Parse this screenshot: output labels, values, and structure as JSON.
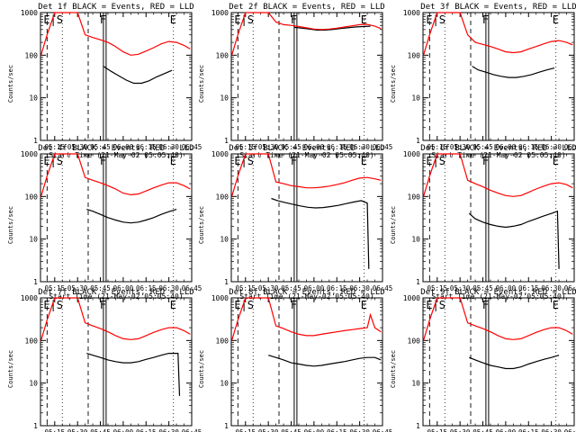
{
  "figure": {
    "x_axis_label": "Start Time (21-May-02 05:05:40)",
    "y_axis_label": "Counts/sec",
    "y_ticks": [
      {
        "value": 1,
        "label": "1"
      },
      {
        "value": 10,
        "label": "10"
      },
      {
        "value": 100,
        "label": "100"
      },
      {
        "value": 1000,
        "label": "1000"
      }
    ],
    "x_ticks": [
      "05:15",
      "05:30",
      "05:45",
      "06:00",
      "06:15",
      "06:30",
      "06:45"
    ],
    "colors": {
      "events": "#000000",
      "lld": "#ff0000",
      "background": "#ffffff",
      "axes": "#000000"
    }
  },
  "chart_data": [
    {
      "type": "line",
      "title": "Det 1f BLACK = Events, RED = LLD",
      "xlabel": "Start Time (21-May-02 05:05:40)",
      "ylabel": "Counts/sec",
      "xlim": [
        "05:05:40",
        "06:45"
      ],
      "ylim": [
        1,
        1000
      ],
      "y_scale": "log",
      "grid": false,
      "legend": "none",
      "markers": {
        "E": "06:33",
        "S": "05:10",
        "F": "05:47"
      },
      "series": [
        {
          "name": "Events",
          "color": "#000000",
          "x": [
            "05:47",
            "05:52",
            "05:57",
            "06:02",
            "06:07",
            "06:12",
            "06:17",
            "06:22",
            "06:27",
            "06:32"
          ],
          "values": [
            55,
            42,
            33,
            26,
            22,
            22,
            25,
            31,
            37,
            44
          ]
        },
        {
          "name": "LLD",
          "color": "#ff0000",
          "x": [
            "05:06",
            "05:10",
            "05:15",
            "05:25",
            "05:30",
            "05:35",
            "05:40",
            "05:45",
            "05:50",
            "05:55",
            "06:00",
            "06:05",
            "06:10",
            "06:15",
            "06:20",
            "06:25",
            "06:30",
            "06:35",
            "06:40",
            "06:44"
          ],
          "values": [
            100,
            300,
            1000,
            1000,
            1000,
            300,
            260,
            230,
            200,
            160,
            120,
            100,
            105,
            125,
            150,
            185,
            210,
            200,
            170,
            140
          ]
        }
      ]
    },
    {
      "type": "line",
      "title": "Det 2f BLACK = Events, RED = LLD",
      "xlabel": "Start Time (21-May-02 05:05:40)",
      "ylabel": "Counts/sec",
      "xlim": [
        "05:05:40",
        "06:45"
      ],
      "ylim": [
        1,
        1000
      ],
      "y_scale": "log",
      "grid": false,
      "legend": "none",
      "markers": {
        "E": "06:33",
        "S": "05:10",
        "F": "05:47"
      },
      "series": [
        {
          "name": "Events",
          "color": "#000000",
          "x": [
            "05:47",
            "05:52",
            "05:57",
            "06:02",
            "06:07",
            "06:12",
            "06:17",
            "06:22",
            "06:27",
            "06:32",
            "06:37"
          ],
          "values": [
            450,
            430,
            410,
            390,
            390,
            400,
            420,
            440,
            460,
            470,
            480
          ]
        },
        {
          "name": "LLD",
          "color": "#ff0000",
          "x": [
            "05:06",
            "05:10",
            "05:15",
            "05:25",
            "05:30",
            "05:35",
            "05:40",
            "05:45",
            "05:50",
            "05:55",
            "06:00",
            "06:05",
            "06:10",
            "06:15",
            "06:20",
            "06:25",
            "06:30",
            "06:35",
            "06:40",
            "06:44"
          ],
          "values": [
            100,
            300,
            1000,
            1000,
            1000,
            600,
            520,
            500,
            470,
            440,
            410,
            400,
            410,
            430,
            460,
            490,
            520,
            530,
            480,
            420
          ]
        }
      ]
    },
    {
      "type": "line",
      "title": "Det 3f BLACK = Events, RED = LLD",
      "xlabel": "Start Time (21-May-02 05:05:40)",
      "ylabel": "Counts/sec",
      "xlim": [
        "05:05:40",
        "06:45"
      ],
      "ylim": [
        1,
        1000
      ],
      "y_scale": "log",
      "grid": false,
      "legend": "none",
      "markers": {
        "E": "06:33",
        "S": "05:10",
        "F": "05:47"
      },
      "series": [
        {
          "name": "Events",
          "color": "#000000",
          "x": [
            "05:38",
            "05:42",
            "05:47",
            "05:52",
            "05:57",
            "06:02",
            "06:07",
            "06:12",
            "06:17",
            "06:22",
            "06:27",
            "06:32"
          ],
          "values": [
            55,
            45,
            40,
            35,
            32,
            30,
            30,
            32,
            35,
            40,
            45,
            50
          ]
        },
        {
          "name": "LLD",
          "color": "#ff0000",
          "x": [
            "05:06",
            "05:10",
            "05:15",
            "05:25",
            "05:30",
            "05:35",
            "05:40",
            "05:45",
            "05:50",
            "05:55",
            "06:00",
            "06:05",
            "06:10",
            "06:15",
            "06:20",
            "06:25",
            "06:30",
            "06:35",
            "06:40",
            "06:44"
          ],
          "values": [
            100,
            300,
            1000,
            1000,
            1000,
            300,
            200,
            180,
            160,
            140,
            120,
            115,
            120,
            140,
            160,
            185,
            210,
            220,
            200,
            175
          ]
        }
      ]
    },
    {
      "type": "line",
      "title": "Det 4f BLACK = Events, RED = LLD",
      "xlabel": "Start Time (21-May-02 05:05:40)",
      "ylabel": "Counts/sec",
      "xlim": [
        "05:05:40",
        "06:45"
      ],
      "ylim": [
        1,
        1000
      ],
      "y_scale": "log",
      "grid": false,
      "legend": "none",
      "markers": {
        "E": "06:33",
        "S": "05:10",
        "F": "05:47"
      },
      "series": [
        {
          "name": "Events",
          "color": "#000000",
          "x": [
            "05:36",
            "05:40",
            "05:45",
            "05:50",
            "05:55",
            "06:00",
            "06:05",
            "06:10",
            "06:15",
            "06:20",
            "06:25",
            "06:30",
            "06:35"
          ],
          "values": [
            50,
            45,
            38,
            32,
            28,
            25,
            24,
            25,
            28,
            32,
            38,
            44,
            50
          ]
        },
        {
          "name": "LLD",
          "color": "#ff0000",
          "x": [
            "05:06",
            "05:10",
            "05:15",
            "05:25",
            "05:30",
            "05:35",
            "05:40",
            "05:45",
            "05:50",
            "05:55",
            "06:00",
            "06:05",
            "06:10",
            "06:15",
            "06:20",
            "06:25",
            "06:30",
            "06:35",
            "06:40",
            "06:44"
          ],
          "values": [
            100,
            300,
            1000,
            1000,
            1000,
            280,
            240,
            210,
            180,
            150,
            120,
            110,
            115,
            135,
            160,
            185,
            210,
            210,
            180,
            150
          ]
        }
      ]
    },
    {
      "type": "line",
      "title": "Det 5f BLACK = Events, RED = LLD",
      "xlabel": "Start Time (21-May-02 05:05:40)",
      "ylabel": "Counts/sec",
      "xlim": [
        "05:05:40",
        "06:45"
      ],
      "ylim": [
        1,
        1000
      ],
      "y_scale": "log",
      "grid": false,
      "legend": "none",
      "markers": {
        "E": "06:33",
        "S": "05:10",
        "F": "05:47"
      },
      "series": [
        {
          "name": "Events",
          "color": "#000000",
          "x": [
            "05:32",
            "05:36",
            "05:41",
            "05:46",
            "05:51",
            "05:56",
            "06:01",
            "06:06",
            "06:11",
            "06:16",
            "06:21",
            "06:26",
            "06:31",
            "06:35",
            "06:36"
          ],
          "values": [
            90,
            80,
            72,
            66,
            60,
            56,
            54,
            55,
            58,
            62,
            68,
            74,
            80,
            70,
            2
          ]
        },
        {
          "name": "LLD",
          "color": "#ff0000",
          "x": [
            "05:06",
            "05:10",
            "05:15",
            "05:25",
            "05:30",
            "05:35",
            "05:40",
            "05:45",
            "05:50",
            "05:55",
            "06:00",
            "06:05",
            "06:10",
            "06:15",
            "06:20",
            "06:25",
            "06:30",
            "06:35",
            "06:40",
            "06:44"
          ],
          "values": [
            100,
            300,
            1000,
            1000,
            1000,
            220,
            200,
            180,
            170,
            160,
            160,
            165,
            175,
            190,
            210,
            240,
            270,
            280,
            260,
            240
          ]
        }
      ]
    },
    {
      "type": "line",
      "title": "Det 6f BLACK = Events, RED = LLD",
      "xlabel": "Start Time (21-May-02 05:05:40)",
      "ylabel": "Counts/sec",
      "xlim": [
        "05:05:40",
        "06:45"
      ],
      "ylim": [
        1,
        1000
      ],
      "y_scale": "log",
      "grid": false,
      "legend": "none",
      "markers": {
        "E": "06:33",
        "S": "05:10",
        "F": "05:47"
      },
      "series": [
        {
          "name": "Events",
          "color": "#000000",
          "x": [
            "05:36",
            "05:40",
            "05:45",
            "05:50",
            "05:55",
            "06:00",
            "06:05",
            "06:10",
            "06:15",
            "06:20",
            "06:25",
            "06:30",
            "06:34",
            "06:35"
          ],
          "values": [
            40,
            30,
            25,
            22,
            20,
            19,
            20,
            22,
            26,
            30,
            35,
            40,
            45,
            2
          ]
        },
        {
          "name": "LLD",
          "color": "#ff0000",
          "x": [
            "05:06",
            "05:10",
            "05:15",
            "05:25",
            "05:30",
            "05:35",
            "05:40",
            "05:45",
            "05:50",
            "05:55",
            "06:00",
            "06:05",
            "06:10",
            "06:15",
            "06:20",
            "06:25",
            "06:30",
            "06:35",
            "06:40",
            "06:44"
          ],
          "values": [
            100,
            300,
            1000,
            1000,
            1000,
            240,
            200,
            170,
            140,
            120,
            105,
            100,
            105,
            125,
            150,
            175,
            200,
            210,
            190,
            160
          ]
        }
      ]
    },
    {
      "type": "line",
      "title": "Det 7f BLACK = Events, RED = LLD",
      "xlabel": "Start Time (21-May-02 05:05:40)",
      "ylabel": "Counts/sec",
      "xlim": [
        "05:05:40",
        "06:45"
      ],
      "ylim": [
        1,
        1000
      ],
      "y_scale": "log",
      "grid": false,
      "legend": "none",
      "markers": {
        "E": "06:33",
        "S": "05:10",
        "F": "05:47"
      },
      "series": [
        {
          "name": "Events",
          "color": "#000000",
          "x": [
            "05:36",
            "05:40",
            "05:45",
            "05:50",
            "05:55",
            "06:00",
            "06:05",
            "06:10",
            "06:15",
            "06:20",
            "06:25",
            "06:30",
            "06:36",
            "06:37"
          ],
          "values": [
            50,
            45,
            40,
            35,
            32,
            30,
            30,
            32,
            36,
            40,
            45,
            50,
            50,
            5
          ]
        },
        {
          "name": "LLD",
          "color": "#ff0000",
          "x": [
            "05:06",
            "05:10",
            "05:15",
            "05:25",
            "05:30",
            "05:35",
            "05:40",
            "05:45",
            "05:50",
            "05:55",
            "06:00",
            "06:05",
            "06:10",
            "06:15",
            "06:20",
            "06:25",
            "06:30",
            "06:35",
            "06:40",
            "06:44"
          ],
          "values": [
            100,
            300,
            1000,
            1000,
            1000,
            260,
            220,
            190,
            160,
            130,
            110,
            105,
            110,
            130,
            155,
            180,
            200,
            200,
            170,
            140
          ]
        }
      ]
    },
    {
      "type": "line",
      "title": "Det 8f BLACK = Events, RED = LLD",
      "xlabel": "Start Time (21-May-02 05:05:40)",
      "ylabel": "Counts/sec",
      "xlim": [
        "05:05:40",
        "06:45"
      ],
      "ylim": [
        1,
        1000
      ],
      "y_scale": "log",
      "grid": false,
      "legend": "none",
      "markers": {
        "E": "06:33",
        "S": "05:10",
        "F": "05:47"
      },
      "series": [
        {
          "name": "Events",
          "color": "#000000",
          "x": [
            "05:30",
            "05:35",
            "05:40",
            "05:45",
            "05:50",
            "05:55",
            "06:00",
            "06:05",
            "06:10",
            "06:15",
            "06:20",
            "06:25",
            "06:30",
            "06:35",
            "06:40",
            "06:44"
          ],
          "values": [
            45,
            40,
            35,
            30,
            28,
            26,
            25,
            26,
            28,
            30,
            32,
            35,
            38,
            40,
            40,
            35
          ]
        },
        {
          "name": "LLD",
          "color": "#ff0000",
          "x": [
            "05:06",
            "05:10",
            "05:15",
            "05:25",
            "05:30",
            "05:35",
            "05:40",
            "05:45",
            "05:50",
            "05:55",
            "06:00",
            "06:05",
            "06:10",
            "06:15",
            "06:20",
            "06:25",
            "06:30",
            "06:35",
            "06:37",
            "06:40",
            "06:44"
          ],
          "values": [
            100,
            300,
            1000,
            1000,
            1000,
            220,
            190,
            160,
            140,
            130,
            130,
            140,
            150,
            160,
            170,
            180,
            190,
            200,
            400,
            200,
            160
          ]
        }
      ]
    },
    {
      "type": "line",
      "title": "Det 9f BLACK = Events, RED = LLD",
      "xlabel": "Start Time (21-May-02 05:05:40)",
      "ylabel": "Counts/sec",
      "xlim": [
        "05:05:40",
        "06:45"
      ],
      "ylim": [
        1,
        1000
      ],
      "y_scale": "log",
      "grid": false,
      "legend": "none",
      "markers": {
        "E": "06:33",
        "S": "05:10",
        "F": "05:47"
      },
      "series": [
        {
          "name": "Events",
          "color": "#000000",
          "x": [
            "05:36",
            "05:40",
            "05:45",
            "05:50",
            "05:55",
            "06:00",
            "06:05",
            "06:10",
            "06:15",
            "06:20",
            "06:25",
            "06:30",
            "06:35"
          ],
          "values": [
            40,
            35,
            30,
            26,
            24,
            22,
            22,
            24,
            28,
            32,
            36,
            40,
            45
          ]
        },
        {
          "name": "LLD",
          "color": "#ff0000",
          "x": [
            "05:06",
            "05:10",
            "05:15",
            "05:25",
            "05:30",
            "05:35",
            "05:40",
            "05:45",
            "05:50",
            "05:55",
            "06:00",
            "06:05",
            "06:10",
            "06:15",
            "06:20",
            "06:25",
            "06:30",
            "06:35",
            "06:40",
            "06:44"
          ],
          "values": [
            100,
            300,
            1000,
            1000,
            1000,
            260,
            220,
            190,
            160,
            130,
            110,
            105,
            110,
            130,
            155,
            180,
            200,
            200,
            170,
            140
          ]
        }
      ]
    }
  ]
}
